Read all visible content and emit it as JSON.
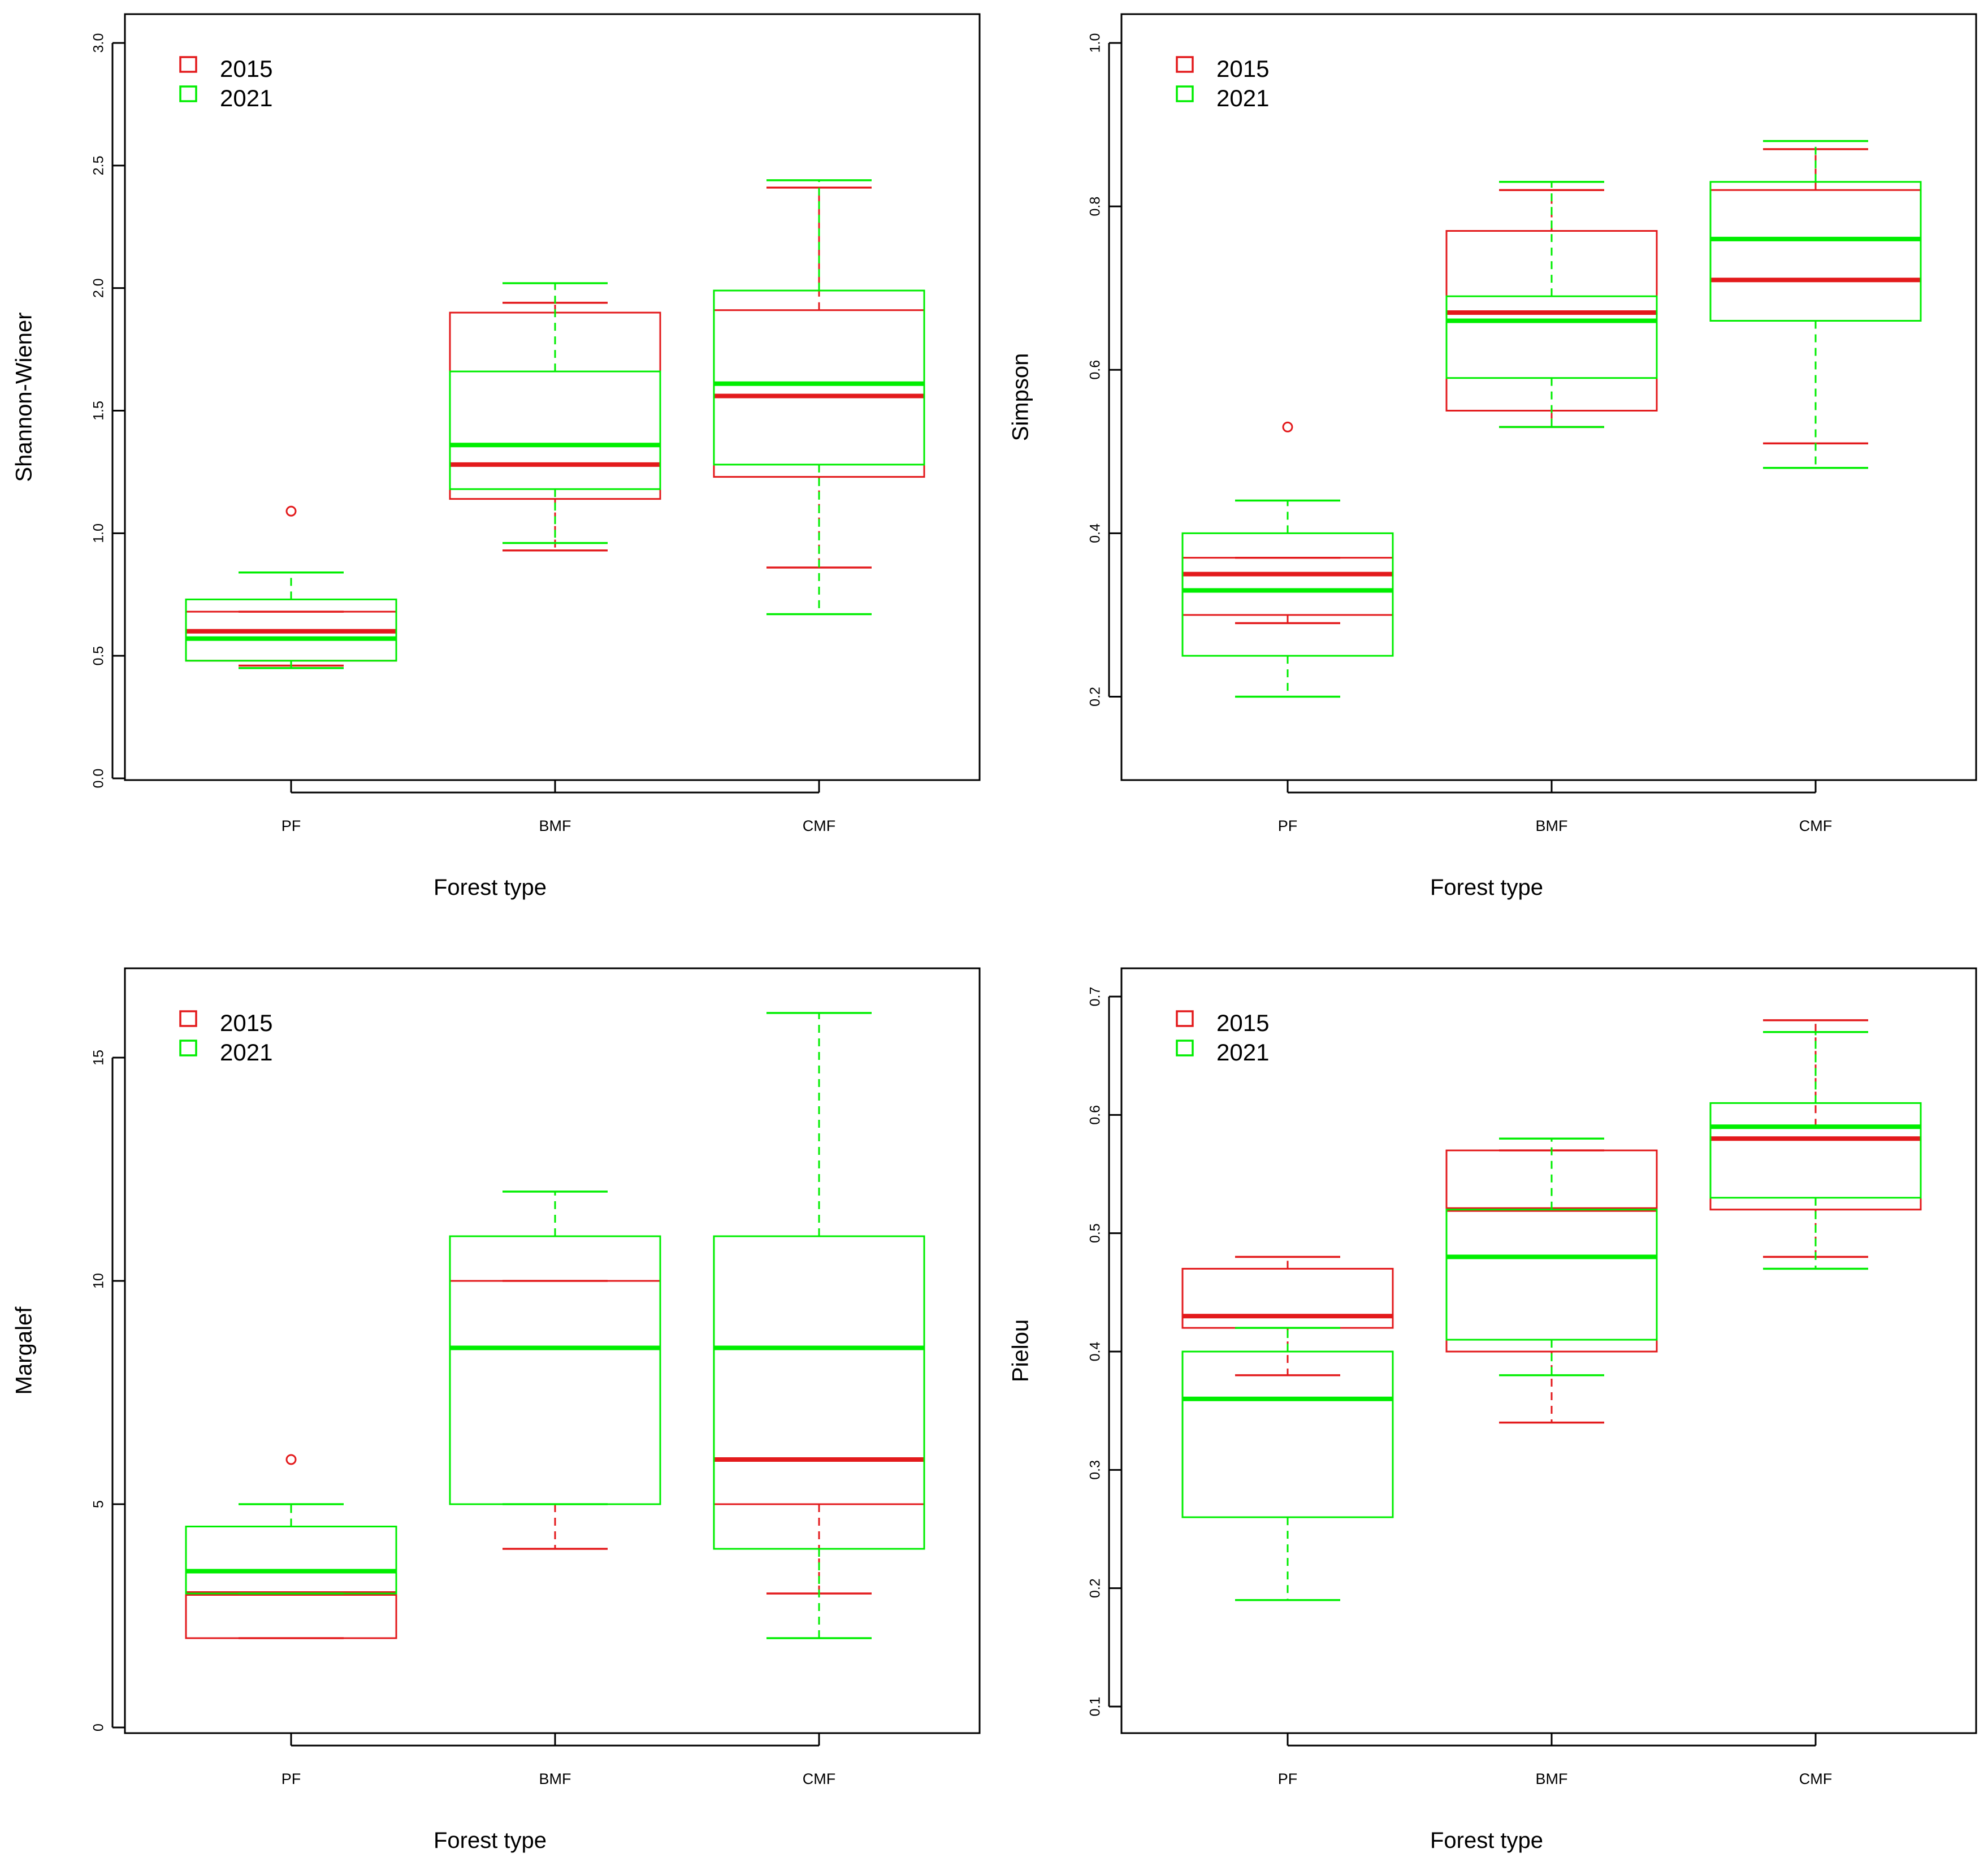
{
  "colors": {
    "y2015": "#e31a1c",
    "y2021": "#00ee00",
    "axis": "#000000"
  },
  "chart_data": [
    {
      "type": "boxplot",
      "ylabel": "Shannon-Wiener",
      "xlabel": "Forest type",
      "categories": [
        "PF",
        "BMF",
        "CMF"
      ],
      "ylim": [
        0,
        3
      ],
      "yticks": [
        "0.0",
        "0.5",
        "1.0",
        "1.5",
        "2.0",
        "2.5",
        "3.0"
      ],
      "legend": [
        "2015",
        "2021"
      ],
      "series": [
        {
          "name": "2015",
          "color": "#e31a1c",
          "boxes": [
            {
              "whisker_low": 0.46,
              "q1": 0.48,
              "median": 0.6,
              "q3": 0.68,
              "whisker_high": 0.68,
              "outliers": [
                1.09
              ]
            },
            {
              "whisker_low": 0.93,
              "q1": 1.14,
              "median": 1.28,
              "q3": 1.9,
              "whisker_high": 1.94,
              "outliers": []
            },
            {
              "whisker_low": 0.86,
              "q1": 1.23,
              "median": 1.56,
              "q3": 1.91,
              "whisker_high": 2.41,
              "outliers": []
            }
          ]
        },
        {
          "name": "2021",
          "color": "#00ee00",
          "boxes": [
            {
              "whisker_low": 0.45,
              "q1": 0.48,
              "median": 0.57,
              "q3": 0.73,
              "whisker_high": 0.84,
              "outliers": []
            },
            {
              "whisker_low": 0.96,
              "q1": 1.18,
              "median": 1.36,
              "q3": 1.66,
              "whisker_high": 2.02,
              "outliers": []
            },
            {
              "whisker_low": 0.67,
              "q1": 1.28,
              "median": 1.61,
              "q3": 1.99,
              "whisker_high": 2.44,
              "outliers": []
            }
          ]
        }
      ]
    },
    {
      "type": "boxplot",
      "ylabel": "Simpson",
      "xlabel": "Forest type",
      "categories": [
        "PF",
        "BMF",
        "CMF"
      ],
      "ylim": [
        0.1,
        1.0
      ],
      "yticks": [
        "0.2",
        "0.4",
        "0.6",
        "0.8",
        "1.0"
      ],
      "legend": [
        "2015",
        "2021"
      ],
      "series": [
        {
          "name": "2015",
          "color": "#e31a1c",
          "boxes": [
            {
              "whisker_low": 0.29,
              "q1": 0.3,
              "median": 0.35,
              "q3": 0.37,
              "whisker_high": 0.37,
              "outliers": [
                0.53
              ]
            },
            {
              "whisker_low": 0.53,
              "q1": 0.55,
              "median": 0.67,
              "q3": 0.77,
              "whisker_high": 0.82,
              "outliers": []
            },
            {
              "whisker_low": 0.51,
              "q1": 0.66,
              "median": 0.71,
              "q3": 0.82,
              "whisker_high": 0.87,
              "outliers": []
            }
          ]
        },
        {
          "name": "2021",
          "color": "#00ee00",
          "boxes": [
            {
              "whisker_low": 0.2,
              "q1": 0.25,
              "median": 0.33,
              "q3": 0.4,
              "whisker_high": 0.44,
              "outliers": []
            },
            {
              "whisker_low": 0.53,
              "q1": 0.59,
              "median": 0.66,
              "q3": 0.69,
              "whisker_high": 0.83,
              "outliers": []
            },
            {
              "whisker_low": 0.48,
              "q1": 0.66,
              "median": 0.76,
              "q3": 0.83,
              "whisker_high": 0.88,
              "outliers": []
            }
          ]
        }
      ]
    },
    {
      "type": "boxplot",
      "ylabel": "Margalef",
      "xlabel": "Forest type",
      "categories": [
        "PF",
        "BMF",
        "CMF"
      ],
      "ylim": [
        0,
        17
      ],
      "yticks": [
        "0",
        "5",
        "10",
        "15"
      ],
      "legend": [
        "2015",
        "2021"
      ],
      "series": [
        {
          "name": "2015",
          "color": "#e31a1c",
          "boxes": [
            {
              "whisker_low": 2,
              "q1": 2,
              "median": 3,
              "q3": 3,
              "whisker_high": 3,
              "outliers": [
                6
              ]
            },
            {
              "whisker_low": 4,
              "q1": 5,
              "median": 8.5,
              "q3": 10,
              "whisker_high": 10,
              "outliers": []
            },
            {
              "whisker_low": 3,
              "q1": 5,
              "median": 6,
              "q3": 6,
              "whisker_high": 6,
              "outliers": []
            }
          ]
        },
        {
          "name": "2021",
          "color": "#00ee00",
          "boxes": [
            {
              "whisker_low": 3,
              "q1": 3,
              "median": 3.5,
              "q3": 4.5,
              "whisker_high": 5,
              "outliers": []
            },
            {
              "whisker_low": 5,
              "q1": 5,
              "median": 8.5,
              "q3": 11,
              "whisker_high": 12,
              "outliers": []
            },
            {
              "whisker_low": 2,
              "q1": 4,
              "median": 8.5,
              "q3": 11,
              "whisker_high": 16,
              "outliers": []
            }
          ]
        }
      ]
    },
    {
      "type": "boxplot",
      "ylabel": "Pielou",
      "xlabel": "Forest type",
      "categories": [
        "PF",
        "BMF",
        "CMF"
      ],
      "ylim": [
        0.1,
        0.7
      ],
      "yticks": [
        "0.1",
        "0.2",
        "0.3",
        "0.4",
        "0.5",
        "0.6",
        "0.7"
      ],
      "legend": [
        "2015",
        "2021"
      ],
      "series": [
        {
          "name": "2015",
          "color": "#e31a1c",
          "boxes": [
            {
              "whisker_low": 0.38,
              "q1": 0.42,
              "median": 0.43,
              "q3": 0.47,
              "whisker_high": 0.48,
              "outliers": []
            },
            {
              "whisker_low": 0.34,
              "q1": 0.4,
              "median": 0.52,
              "q3": 0.57,
              "whisker_high": 0.57,
              "outliers": []
            },
            {
              "whisker_low": 0.48,
              "q1": 0.52,
              "median": 0.58,
              "q3": 0.59,
              "whisker_high": 0.68,
              "outliers": []
            }
          ]
        },
        {
          "name": "2021",
          "color": "#00ee00",
          "boxes": [
            {
              "whisker_low": 0.19,
              "q1": 0.26,
              "median": 0.36,
              "q3": 0.4,
              "whisker_high": 0.42,
              "outliers": []
            },
            {
              "whisker_low": 0.38,
              "q1": 0.41,
              "median": 0.48,
              "q3": 0.52,
              "whisker_high": 0.58,
              "outliers": []
            },
            {
              "whisker_low": 0.47,
              "q1": 0.53,
              "median": 0.59,
              "q3": 0.61,
              "whisker_high": 0.67,
              "outliers": []
            }
          ]
        }
      ]
    }
  ]
}
